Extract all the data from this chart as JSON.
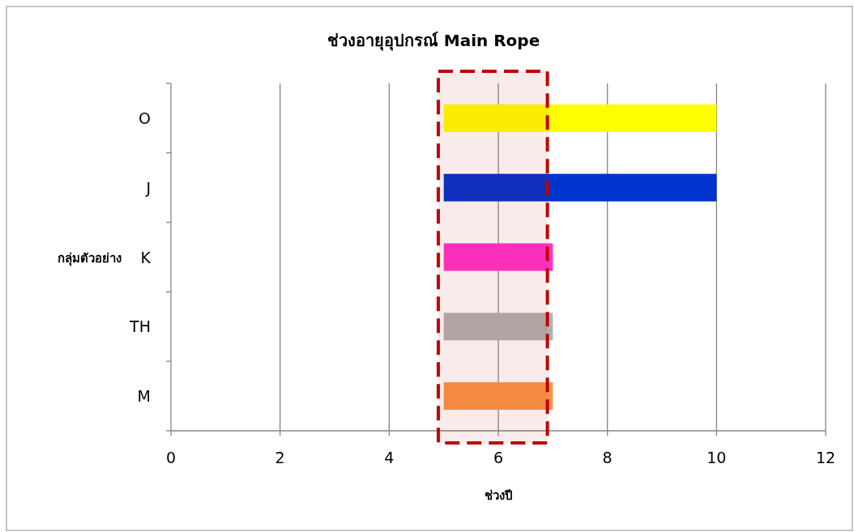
{
  "chart_data": {
    "type": "bar",
    "orientation": "horizontal",
    "title": "ช่วงอายุอุปกรณ์ Main Rope",
    "xlabel": "ช่วงปี",
    "ylabel": "กลุ่มตัวอย่าง",
    "categories": [
      "O",
      "J",
      "K",
      "TH",
      "M"
    ],
    "base": [
      5,
      5,
      5,
      5,
      5
    ],
    "values": [
      5,
      5,
      2,
      2,
      2
    ],
    "colors": [
      "#ffff00",
      "#0033cc",
      "#ff33cc",
      "#b2b2b2",
      "#f79646"
    ],
    "xlim": [
      0,
      12
    ],
    "xticks": [
      0,
      2,
      4,
      6,
      8,
      10,
      12
    ],
    "grid": "x",
    "bands": [
      {
        "axis": "x",
        "from": 4.9,
        "to": 6.9,
        "color": "#c00000"
      }
    ]
  }
}
